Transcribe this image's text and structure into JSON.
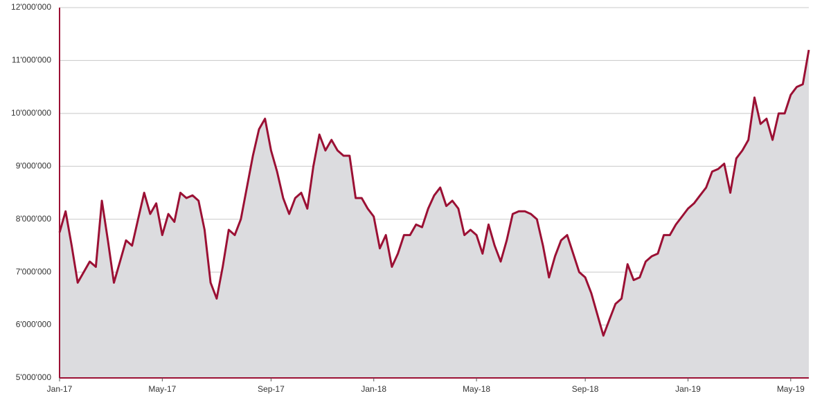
{
  "chart_data": {
    "type": "area",
    "categories": [
      "Jan-17",
      null,
      null,
      null,
      null,
      null,
      null,
      null,
      null,
      null,
      null,
      null,
      null,
      null,
      null,
      null,
      null,
      "May-17",
      null,
      null,
      null,
      null,
      null,
      null,
      null,
      null,
      null,
      null,
      null,
      null,
      null,
      null,
      null,
      null,
      null,
      "Sep-17",
      null,
      null,
      null,
      null,
      null,
      null,
      null,
      null,
      null,
      null,
      null,
      null,
      null,
      null,
      null,
      null,
      "Jan-18",
      null,
      null,
      null,
      null,
      null,
      null,
      null,
      null,
      null,
      null,
      null,
      null,
      null,
      null,
      null,
      null,
      "May-18",
      null,
      null,
      null,
      null,
      null,
      null,
      null,
      null,
      null,
      null,
      null,
      null,
      null,
      null,
      null,
      null,
      null,
      "Sep-18",
      null,
      null,
      null,
      null,
      null,
      null,
      null,
      null,
      null,
      null,
      null,
      null,
      null,
      null,
      null,
      null,
      "Jan-19",
      null,
      null,
      null,
      null,
      null,
      null,
      null,
      null,
      null,
      null,
      null,
      null,
      null,
      null,
      null,
      null,
      "May-19",
      null,
      null,
      null
    ],
    "series": [
      {
        "color": "#9b1034",
        "fill": "#dcdcdf",
        "values": [
          7750000,
          8150000,
          7500000,
          6800000,
          7000000,
          7200000,
          7100000,
          8350000,
          7600000,
          6800000,
          7200000,
          7600000,
          7500000,
          8000000,
          8500000,
          8100000,
          8300000,
          7700000,
          8100000,
          7950000,
          8500000,
          8400000,
          8450000,
          8350000,
          7800000,
          6800000,
          6500000,
          7100000,
          7800000,
          7700000,
          8000000,
          8600000,
          9200000,
          9700000,
          9900000,
          9300000,
          8900000,
          8400000,
          8100000,
          8400000,
          8500000,
          8200000,
          9000000,
          9600000,
          9300000,
          9500000,
          9300000,
          9200000,
          9200000,
          8400000,
          8400000,
          8200000,
          8050000,
          7450000,
          7700000,
          7100000,
          7350000,
          7700000,
          7700000,
          7900000,
          7850000,
          8200000,
          8450000,
          8600000,
          8250000,
          8350000,
          8200000,
          7700000,
          7800000,
          7700000,
          7350000,
          7900000,
          7500000,
          7200000,
          7600000,
          8100000,
          8150000,
          8150000,
          8100000,
          8000000,
          7500000,
          6900000,
          7300000,
          7600000,
          7700000,
          7350000,
          7000000,
          6900000,
          6600000,
          6200000,
          5800000,
          6100000,
          6400000,
          6500000,
          7150000,
          6850000,
          6900000,
          7200000,
          7300000,
          7350000,
          7700000,
          7700000,
          7900000,
          8050000,
          8200000,
          8300000,
          8450000,
          8600000,
          8900000,
          8950000,
          9050000,
          8500000,
          9150000,
          9300000,
          9500000,
          10300000,
          9800000,
          9900000,
          9500000,
          10000000,
          10000000,
          10350000,
          10500000,
          10550000,
          11200000
        ]
      }
    ],
    "ylim": [
      5000000,
      12000000
    ],
    "yticks": [
      {
        "value": 5000000,
        "label": "5'000'000"
      },
      {
        "value": 6000000,
        "label": "6'000'000"
      },
      {
        "value": 7000000,
        "label": "7'000'000"
      },
      {
        "value": 8000000,
        "label": "8'000'000"
      },
      {
        "value": 9000000,
        "label": "9'000'000"
      },
      {
        "value": 10000000,
        "label": "10'000'000"
      },
      {
        "value": 11000000,
        "label": "11'000'000"
      },
      {
        "value": 12000000,
        "label": "12'000'000"
      }
    ],
    "grid": true
  }
}
